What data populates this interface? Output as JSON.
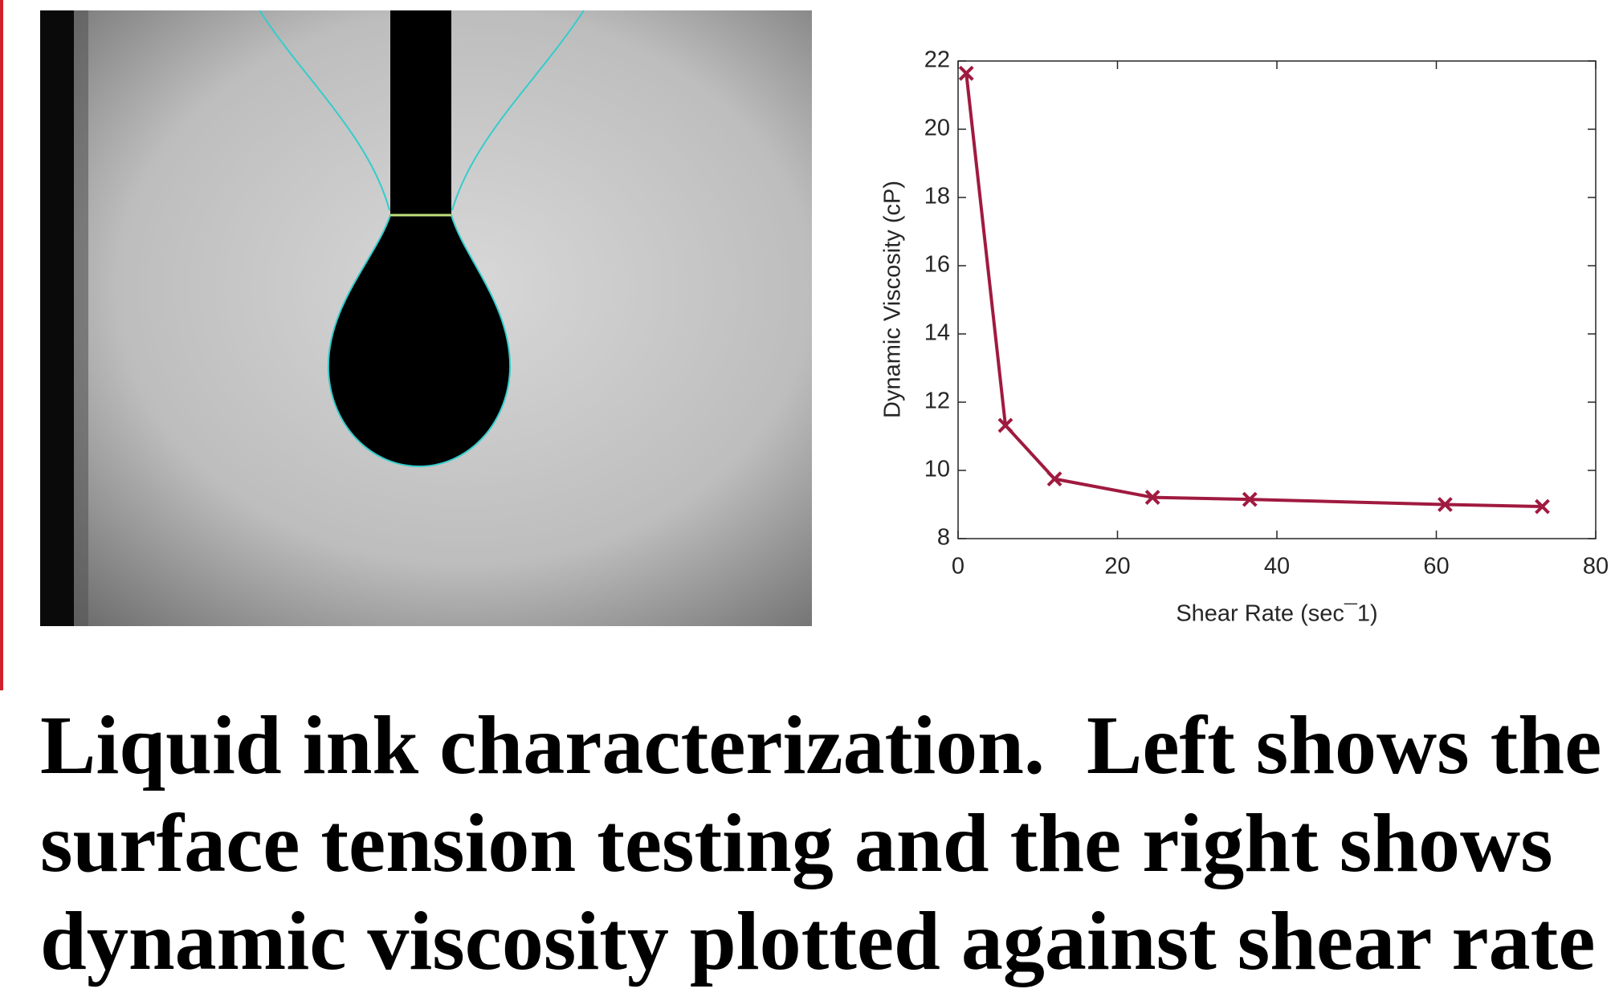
{
  "chart_data": {
    "type": "line",
    "xlabel": "Shear Rate (sec¯1)",
    "ylabel": "Dynamic Viscosity (cP)",
    "xlim": [
      0,
      80
    ],
    "ylim": [
      8,
      22
    ],
    "xticks": [
      0,
      20,
      40,
      60,
      80
    ],
    "yticks": [
      8,
      10,
      12,
      14,
      16,
      18,
      20,
      22
    ],
    "grid": false,
    "series": [
      {
        "color": "#a01a3f",
        "x": [
          1.03,
          5.94,
          12.1,
          24.4,
          36.6,
          61.1,
          73.3
        ],
        "values": [
          21.64,
          11.32,
          9.75,
          9.21,
          9.15,
          9.0,
          8.94
        ]
      }
    ]
  },
  "caption": {
    "lines": [
      "Liquid ink characterization.  Left shows the",
      "surface tension testing and the right shows",
      "dynamic viscosity plotted against shear rate"
    ]
  }
}
